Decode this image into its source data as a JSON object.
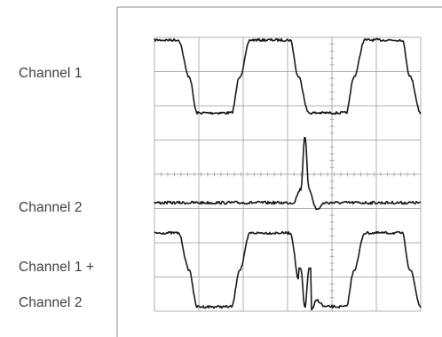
{
  "labels": {
    "channel1": "Channel 1",
    "channel2": "Channel 2",
    "sum_line1": "Channel 1 +",
    "sum_line2": "Channel 2"
  },
  "colors": {
    "trace": "#1a1a1a",
    "grid": "#b0b0b0",
    "frame": "#8a8a8a",
    "label": "#3f3f3f"
  },
  "chart_data": {
    "type": "line",
    "title": "",
    "xlabel": "",
    "ylabel": "",
    "grid": true,
    "grid_divisions": {
      "x": 6,
      "y": 8
    },
    "series": [
      {
        "name": "Channel 1",
        "x": [
          0.0,
          0.09,
          0.13,
          0.16,
          0.19,
          0.29,
          0.32,
          0.36,
          0.39,
          0.51,
          0.54,
          0.58,
          0.61,
          0.72,
          0.75,
          0.79,
          0.82,
          0.93,
          0.96,
          1.0
        ],
        "y": [
          1,
          1,
          0.5,
          0,
          0,
          0,
          0.5,
          1,
          1,
          1,
          0.5,
          0,
          0,
          0,
          0.5,
          1,
          1,
          1,
          0.5,
          0
        ]
      },
      {
        "name": "Channel 2",
        "x": [
          0.0,
          0.52,
          0.55,
          0.565,
          0.58,
          0.61,
          0.64,
          1.0
        ],
        "y": [
          0,
          0,
          0.2,
          1,
          0.2,
          -0.1,
          0,
          0
        ]
      }
    ]
  }
}
